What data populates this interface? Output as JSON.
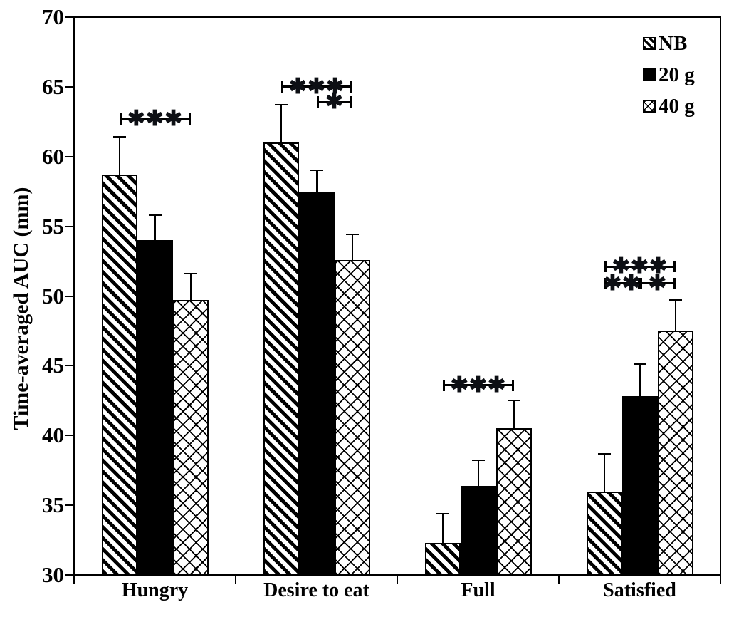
{
  "chart_data": {
    "type": "bar",
    "title": "",
    "xlabel": "",
    "ylabel": "Time-averaged AUC (mm)",
    "ylim": [
      30,
      70
    ],
    "yticks": [
      30,
      35,
      40,
      45,
      50,
      55,
      60,
      65,
      70
    ],
    "grid": false,
    "legend_position": "top-right-inside",
    "categories": [
      "Hungry",
      "Desire to eat",
      "Full",
      "Satisfied"
    ],
    "series": [
      {
        "name": "NB",
        "pattern": "diagonal-hatch",
        "values": [
          58.7,
          61.0,
          32.3,
          36.0
        ],
        "error_up": [
          2.7,
          2.7,
          2.1,
          2.7
        ]
      },
      {
        "name": "20 g",
        "pattern": "solid-black",
        "values": [
          54.0,
          57.5,
          36.4,
          42.8
        ],
        "error_up": [
          1.8,
          1.5,
          1.8,
          2.3
        ]
      },
      {
        "name": "40 g",
        "pattern": "crosshatch",
        "values": [
          49.7,
          52.6,
          40.5,
          47.5
        ],
        "error_up": [
          1.9,
          1.8,
          2.0,
          2.2
        ]
      }
    ],
    "significance_brackets": [
      {
        "group": 0,
        "from_series": 0,
        "to_series": 2,
        "label": "✱✱✱",
        "y": 62.7
      },
      {
        "group": 1,
        "from_series": 0,
        "to_series": 2,
        "label": "✱✱✱",
        "y": 65.0
      },
      {
        "group": 1,
        "from_series": 1,
        "to_series": 2,
        "label": "✱",
        "y": 63.9
      },
      {
        "group": 2,
        "from_series": 0,
        "to_series": 2,
        "label": "✱✱✱",
        "y": 43.6
      },
      {
        "group": 3,
        "from_series": 0,
        "to_series": 2,
        "label": "✱✱✱",
        "y": 52.1
      },
      {
        "group": 3,
        "from_series": 0,
        "to_series": 1,
        "label": "✱✱",
        "y": 50.9
      },
      {
        "group": 3,
        "from_series": 1,
        "to_series": 2,
        "label": "✱",
        "y": 50.9
      }
    ],
    "colors": {
      "foreground": "#000000",
      "background": "#ffffff",
      "star": "#0d0f14"
    }
  }
}
